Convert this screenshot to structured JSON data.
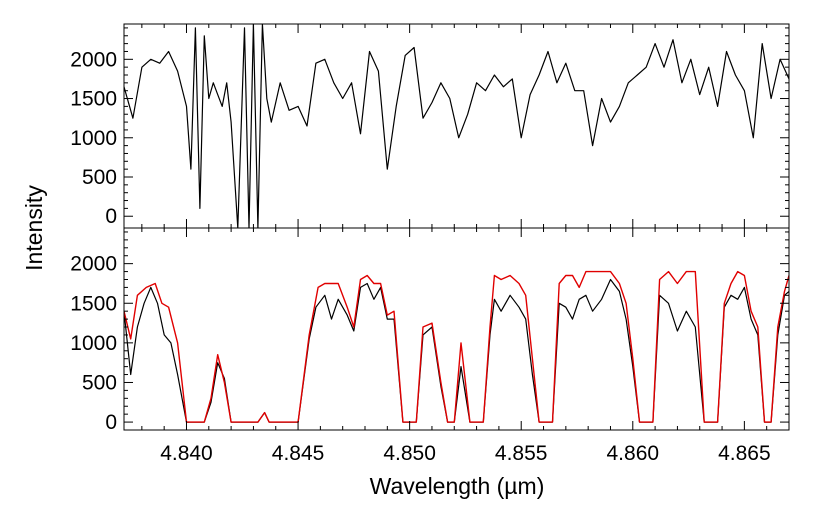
{
  "chart_data": [
    {
      "type": "line",
      "panel": "top",
      "ylabel": "Intensity",
      "xlim": [
        4.8372,
        4.867
      ],
      "ylim": [
        -150,
        2450
      ],
      "yticks": [
        {
          "value": 0,
          "label": "0"
        },
        {
          "value": 500,
          "label": "500"
        },
        {
          "value": 1000,
          "label": "1000"
        },
        {
          "value": 1500,
          "label": "1500"
        },
        {
          "value": 2000,
          "label": "2000"
        }
      ],
      "series": [
        {
          "color": "#000000",
          "x": [
            4.8372,
            4.8376,
            4.838,
            4.8384,
            4.8388,
            4.8392,
            4.8396,
            4.84,
            4.8402,
            4.8404,
            4.8406,
            4.8408,
            4.841,
            4.8412,
            4.8414,
            4.8416,
            4.8418,
            4.842,
            4.8423,
            4.8426,
            4.8428,
            4.843,
            4.8432,
            4.8434,
            4.8436,
            4.8438,
            4.8442,
            4.8446,
            4.845,
            4.8454,
            4.8458,
            4.8462,
            4.8466,
            4.847,
            4.8474,
            4.8478,
            4.8482,
            4.8486,
            4.849,
            4.8494,
            4.8498,
            4.8502,
            4.8506,
            4.851,
            4.8514,
            4.8518,
            4.8522,
            4.8526,
            4.853,
            4.8534,
            4.8538,
            4.8542,
            4.8546,
            4.855,
            4.8554,
            4.8558,
            4.8562,
            4.8566,
            4.857,
            4.8574,
            4.8578,
            4.8582,
            4.8586,
            4.859,
            4.8594,
            4.8598,
            4.8602,
            4.8606,
            4.861,
            4.8614,
            4.8618,
            4.8622,
            4.8626,
            4.863,
            4.8634,
            4.8638,
            4.8642,
            4.8646,
            4.865,
            4.8654,
            4.8658,
            4.8662,
            4.8666,
            4.867
          ],
          "y": [
            1650,
            1250,
            1900,
            2000,
            1950,
            2100,
            1850,
            1400,
            600,
            2400,
            100,
            2300,
            1500,
            1700,
            1550,
            1400,
            1700,
            1200,
            -150,
            2400,
            -150,
            2450,
            -150,
            2450,
            1500,
            1200,
            1700,
            1350,
            1400,
            1150,
            1950,
            2000,
            1700,
            1500,
            1700,
            1050,
            2100,
            1850,
            600,
            1400,
            2050,
            2150,
            1250,
            1450,
            1700,
            1500,
            1000,
            1300,
            1700,
            1600,
            1800,
            1650,
            1750,
            1000,
            1550,
            1800,
            2100,
            1700,
            1950,
            1600,
            1600,
            900,
            1500,
            1200,
            1400,
            1700,
            1800,
            1900,
            2200,
            1900,
            2250,
            1700,
            2000,
            1550,
            1900,
            1400,
            2100,
            1800,
            1600,
            1000,
            2200,
            1500,
            2000,
            1750
          ]
        }
      ]
    },
    {
      "type": "line",
      "panel": "bottom",
      "xlabel": "Wavelength (µm)",
      "ylabel": "Intensity",
      "xlim": [
        4.8372,
        4.867
      ],
      "ylim": [
        -100,
        2450
      ],
      "xticks": [
        {
          "value": 4.84,
          "label": "4.840"
        },
        {
          "value": 4.845,
          "label": "4.845"
        },
        {
          "value": 4.85,
          "label": "4.850"
        },
        {
          "value": 4.855,
          "label": "4.855"
        },
        {
          "value": 4.86,
          "label": "4.860"
        },
        {
          "value": 4.865,
          "label": "4.865"
        }
      ],
      "yticks": [
        {
          "value": 0,
          "label": "0"
        },
        {
          "value": 500,
          "label": "500"
        },
        {
          "value": 1000,
          "label": "1000"
        },
        {
          "value": 1500,
          "label": "1500"
        },
        {
          "value": 2000,
          "label": "2000"
        }
      ],
      "series": [
        {
          "color": "#000000",
          "x": [
            4.8372,
            4.8375,
            4.8378,
            4.8381,
            4.8384,
            4.8387,
            4.839,
            4.8393,
            4.8396,
            4.84,
            4.8404,
            4.8408,
            4.8411,
            4.8414,
            4.8417,
            4.842,
            4.8424,
            4.8428,
            4.8432,
            4.8435,
            4.8437,
            4.844,
            4.8445,
            4.845,
            4.8455,
            4.8458,
            4.8462,
            4.8465,
            4.8468,
            4.8472,
            4.8475,
            4.8478,
            4.8481,
            4.8484,
            4.8487,
            4.849,
            4.8493,
            4.8497,
            4.85,
            4.8503,
            4.8506,
            4.851,
            4.8514,
            4.8517,
            4.852,
            4.8523,
            4.8527,
            4.8531,
            4.8533,
            4.8536,
            4.8538,
            4.8541,
            4.8545,
            4.8549,
            4.8552,
            4.8555,
            4.8558,
            4.8561,
            4.8564,
            4.8567,
            4.857,
            4.8573,
            4.8576,
            4.8579,
            4.8582,
            4.8586,
            4.859,
            4.8594,
            4.8597,
            4.86,
            4.8603,
            4.8606,
            4.8609,
            4.8612,
            4.8616,
            4.862,
            4.8624,
            4.8628,
            4.8632,
            4.8635,
            4.8638,
            4.8641,
            4.8644,
            4.8647,
            4.865,
            4.8653,
            4.8656,
            4.8659,
            4.8662,
            4.8665,
            4.8668,
            4.867
          ],
          "y": [
            1400,
            600,
            1200,
            1500,
            1700,
            1500,
            1100,
            1000,
            600,
            0,
            0,
            0,
            250,
            750,
            550,
            0,
            0,
            0,
            0,
            120,
            0,
            0,
            0,
            0,
            1050,
            1450,
            1600,
            1300,
            1550,
            1350,
            1150,
            1700,
            1750,
            1550,
            1700,
            1300,
            1300,
            0,
            0,
            0,
            1100,
            1200,
            450,
            0,
            0,
            700,
            0,
            0,
            0,
            1100,
            1550,
            1400,
            1600,
            1450,
            1300,
            600,
            0,
            0,
            0,
            1500,
            1450,
            1300,
            1550,
            1600,
            1400,
            1550,
            1800,
            1650,
            1300,
            700,
            0,
            0,
            0,
            1600,
            1500,
            1150,
            1400,
            1200,
            0,
            0,
            0,
            1450,
            1600,
            1550,
            1700,
            1300,
            1100,
            0,
            0,
            1100,
            1600,
            1650
          ]
        },
        {
          "color": "#e00000",
          "x": [
            4.8372,
            4.8375,
            4.8378,
            4.8382,
            4.8386,
            4.8389,
            4.8392,
            4.8396,
            4.84,
            4.8404,
            4.8408,
            4.8411,
            4.8414,
            4.8417,
            4.842,
            4.8424,
            4.8428,
            4.8432,
            4.8435,
            4.8437,
            4.844,
            4.8445,
            4.845,
            4.8455,
            4.8459,
            4.8462,
            4.8465,
            4.8468,
            4.8472,
            4.8475,
            4.8478,
            4.8481,
            4.8484,
            4.8487,
            4.849,
            4.8493,
            4.8497,
            4.85,
            4.8503,
            4.8506,
            4.851,
            4.8514,
            4.8517,
            4.852,
            4.8523,
            4.8527,
            4.8531,
            4.8533,
            4.8536,
            4.8538,
            4.8541,
            4.8545,
            4.8549,
            4.8552,
            4.8555,
            4.8558,
            4.8561,
            4.8564,
            4.8567,
            4.857,
            4.8573,
            4.8576,
            4.8579,
            4.8582,
            4.8586,
            4.859,
            4.8594,
            4.8597,
            4.86,
            4.8603,
            4.8606,
            4.8609,
            4.8612,
            4.8616,
            4.862,
            4.8624,
            4.8628,
            4.8632,
            4.8635,
            4.8638,
            4.8641,
            4.8644,
            4.8647,
            4.865,
            4.8653,
            4.8656,
            4.8659,
            4.8662,
            4.8665,
            4.8668,
            4.867
          ],
          "y": [
            1400,
            1050,
            1600,
            1700,
            1750,
            1500,
            1450,
            1000,
            0,
            0,
            0,
            300,
            850,
            500,
            0,
            0,
            0,
            0,
            120,
            0,
            0,
            0,
            0,
            1100,
            1700,
            1750,
            1750,
            1750,
            1450,
            1200,
            1800,
            1850,
            1750,
            1750,
            1350,
            1400,
            0,
            0,
            0,
            1200,
            1250,
            500,
            0,
            0,
            1000,
            0,
            0,
            0,
            1200,
            1850,
            1800,
            1850,
            1750,
            1600,
            800,
            0,
            0,
            0,
            1750,
            1850,
            1850,
            1700,
            1900,
            1900,
            1900,
            1900,
            1750,
            1500,
            800,
            0,
            0,
            0,
            1800,
            1900,
            1750,
            1900,
            1900,
            0,
            0,
            0,
            1500,
            1750,
            1900,
            1850,
            1400,
            1200,
            0,
            0,
            1200,
            1650,
            1850
          ]
        }
      ]
    }
  ]
}
